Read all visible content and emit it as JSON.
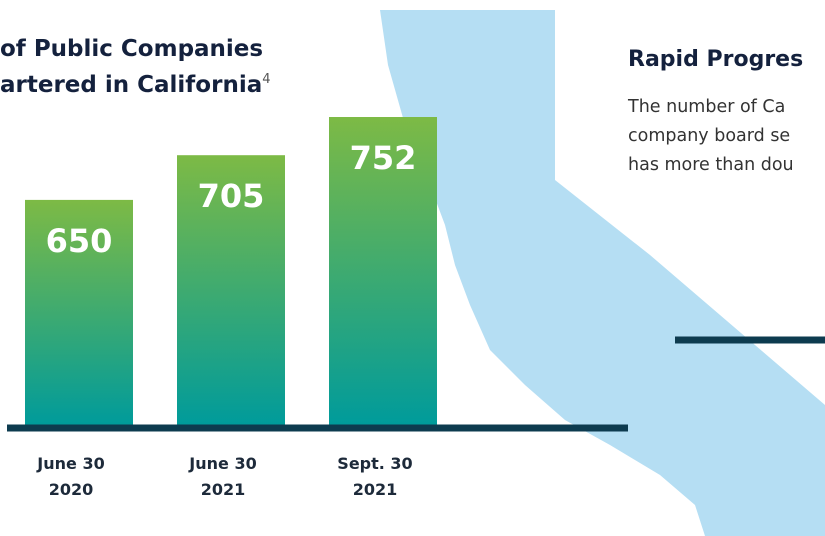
{
  "chart_data": {
    "type": "bar",
    "title_lines": [
      "of Public Companies",
      "artered in California"
    ],
    "title_note": "4",
    "categories": [
      [
        "June 30",
        "2020"
      ],
      [
        "June 30",
        "2021"
      ],
      [
        "Sept. 30",
        "2021"
      ]
    ],
    "values": [
      650,
      705,
      752
    ],
    "color_top": "#7dba45",
    "color_bottom": "#009b9b",
    "ylim": [
      373,
      800
    ]
  },
  "side_panel": {
    "title": "Rapid Progres",
    "lines": [
      "The number of Ca",
      "company board se",
      "has more than dou"
    ]
  }
}
